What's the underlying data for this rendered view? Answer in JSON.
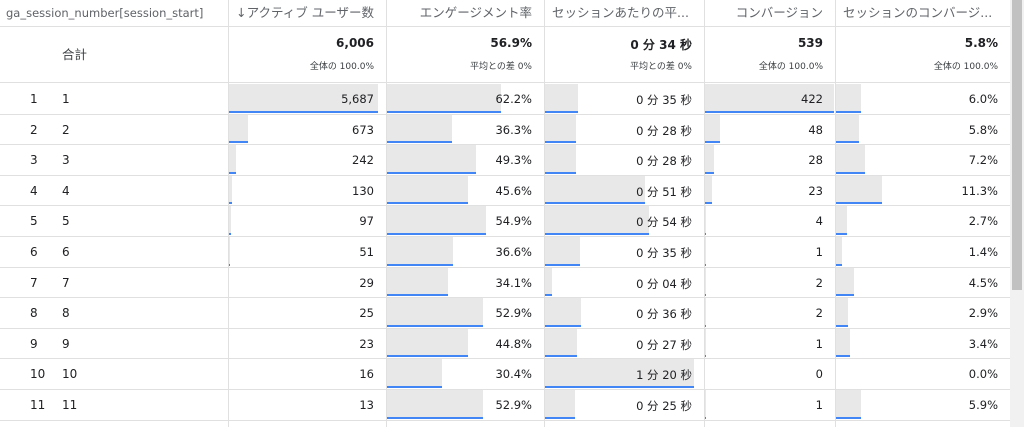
{
  "columns": [
    {
      "label": "ga_session_number[session_start]",
      "col": 0
    },
    {
      "label": "↓アクティブ ユーザー数",
      "col": 1
    },
    {
      "label": "エンゲージメント率",
      "col": 2
    },
    {
      "label": "セッションあたりの平...",
      "col": 3
    },
    {
      "label": "コンバージョン",
      "col": 4
    },
    {
      "label": "セッションのコンバージ...",
      "col": 5
    }
  ],
  "totals": {
    "label": "合計",
    "cells": [
      {
        "value": "6,006",
        "sub": "全体の 100.0%"
      },
      {
        "value": "56.9%",
        "sub": "平均との差 0%"
      },
      {
        "value": "0 分 34 秒",
        "sub": "平均との差 0%"
      },
      {
        "value": "539",
        "sub": "全体の 100.0%"
      },
      {
        "value": "5.8%",
        "sub": "全体の 100.0%"
      }
    ]
  },
  "rows": [
    {
      "index": "1",
      "dim": "1",
      "cells": [
        "5,687",
        "62.2%",
        "0 分 35 秒",
        "422",
        "6.0%"
      ],
      "fractions": [
        0.958,
        0.73,
        0.21,
        1.0,
        0.145
      ]
    },
    {
      "index": "2",
      "dim": "2",
      "cells": [
        "673",
        "36.3%",
        "0 分 28 秒",
        "48",
        "5.8%"
      ],
      "fractions": [
        0.12,
        0.415,
        0.195,
        0.115,
        0.135
      ]
    },
    {
      "index": "3",
      "dim": "3",
      "cells": [
        "242",
        "49.3%",
        "0 分 28 秒",
        "28",
        "7.2%"
      ],
      "fractions": [
        0.043,
        0.57,
        0.195,
        0.067,
        0.17
      ]
    },
    {
      "index": "4",
      "dim": "4",
      "cells": [
        "130",
        "45.6%",
        "0 分 51 秒",
        "23",
        "11.3%"
      ],
      "fractions": [
        0.02,
        0.52,
        0.63,
        0.055,
        0.265
      ]
    },
    {
      "index": "5",
      "dim": "5",
      "cells": [
        "97",
        "54.9%",
        "0 分 54 秒",
        "4",
        "2.7%"
      ],
      "fractions": [
        0.015,
        0.635,
        0.66,
        0.01,
        0.065
      ]
    },
    {
      "index": "6",
      "dim": "6",
      "cells": [
        "51",
        "36.6%",
        "0 分 35 秒",
        "1",
        "1.4%"
      ],
      "fractions": [
        0.008,
        0.42,
        0.22,
        0.004,
        0.035
      ]
    },
    {
      "index": "7",
      "dim": "7",
      "cells": [
        "29",
        "34.1%",
        "0 分 04 秒",
        "2",
        "4.5%"
      ],
      "fractions": [
        0.0,
        0.39,
        0.045,
        0.005,
        0.105
      ]
    },
    {
      "index": "8",
      "dim": "8",
      "cells": [
        "25",
        "52.9%",
        "0 分 36 秒",
        "2",
        "2.9%"
      ],
      "fractions": [
        0.0,
        0.615,
        0.23,
        0.005,
        0.07
      ]
    },
    {
      "index": "9",
      "dim": "9",
      "cells": [
        "23",
        "44.8%",
        "0 分 27 秒",
        "1",
        "3.4%"
      ],
      "fractions": [
        0.0,
        0.52,
        0.2,
        0.004,
        0.08
      ]
    },
    {
      "index": "10",
      "dim": "10",
      "cells": [
        "16",
        "30.4%",
        "1 分 20 秒",
        "0",
        "0.0%"
      ],
      "fractions": [
        0.0,
        0.355,
        0.94,
        0.0,
        0.0
      ]
    },
    {
      "index": "11",
      "dim": "11",
      "cells": [
        "13",
        "52.9%",
        "0 分 25 秒",
        "1",
        "5.9%"
      ],
      "fractions": [
        0.0,
        0.615,
        0.19,
        0.004,
        0.145
      ]
    }
  ],
  "colors": {
    "bar_fill": "#e8e8e8",
    "bar_line": "#4285f4",
    "grid": "#e0e0e0"
  }
}
